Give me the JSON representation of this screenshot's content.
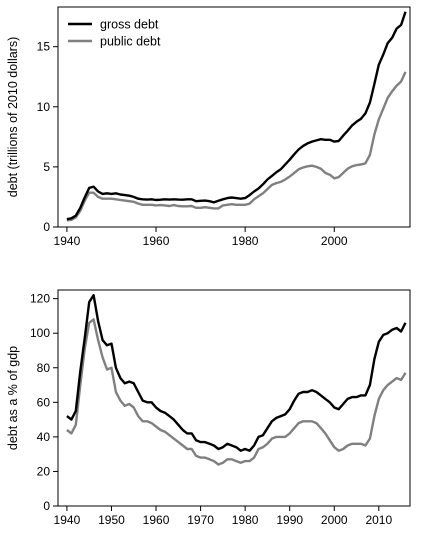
{
  "chart_data": [
    {
      "type": "line",
      "title": "",
      "xlabel": "",
      "ylabel": "debt (trillions of 2010 dollars)",
      "xlim": [
        1938,
        2017
      ],
      "ylim": [
        0,
        18.3
      ],
      "xticks": [
        1940,
        1960,
        1980,
        2000
      ],
      "yticks": [
        0,
        5,
        10,
        15
      ],
      "grid": false,
      "legend_position": "top-left",
      "series": [
        {
          "name": "gross debt",
          "color": "#000000",
          "x": [
            1940,
            1941,
            1942,
            1943,
            1944,
            1945,
            1946,
            1947,
            1948,
            1949,
            1950,
            1951,
            1952,
            1953,
            1954,
            1955,
            1956,
            1957,
            1958,
            1959,
            1960,
            1961,
            1962,
            1963,
            1964,
            1965,
            1966,
            1967,
            1968,
            1969,
            1970,
            1971,
            1972,
            1973,
            1974,
            1975,
            1976,
            1977,
            1978,
            1979,
            1980,
            1981,
            1982,
            1983,
            1984,
            1985,
            1986,
            1987,
            1988,
            1989,
            1990,
            1991,
            1992,
            1993,
            1994,
            1995,
            1996,
            1997,
            1998,
            1999,
            2000,
            2001,
            2002,
            2003,
            2004,
            2005,
            2006,
            2007,
            2008,
            2009,
            2010,
            2011,
            2012,
            2013,
            2014,
            2015,
            2016
          ],
          "values": [
            0.65,
            0.72,
            0.95,
            1.6,
            2.45,
            3.25,
            3.35,
            2.95,
            2.75,
            2.8,
            2.75,
            2.8,
            2.7,
            2.65,
            2.6,
            2.5,
            2.35,
            2.3,
            2.28,
            2.3,
            2.25,
            2.27,
            2.3,
            2.28,
            2.3,
            2.28,
            2.27,
            2.3,
            2.3,
            2.15,
            2.18,
            2.2,
            2.15,
            2.05,
            2.18,
            2.3,
            2.4,
            2.45,
            2.4,
            2.35,
            2.4,
            2.65,
            2.95,
            3.2,
            3.55,
            3.95,
            4.25,
            4.55,
            4.8,
            5.2,
            5.6,
            6.05,
            6.45,
            6.75,
            6.95,
            7.1,
            7.2,
            7.3,
            7.25,
            7.25,
            7.1,
            7.15,
            7.6,
            8.0,
            8.45,
            8.75,
            9.0,
            9.45,
            10.35,
            11.9,
            13.5,
            14.35,
            15.3,
            15.75,
            16.5,
            16.8,
            17.9
          ]
        },
        {
          "name": "public debt",
          "color": "#808080",
          "x": [
            1940,
            1941,
            1942,
            1943,
            1944,
            1945,
            1946,
            1947,
            1948,
            1949,
            1950,
            1951,
            1952,
            1953,
            1954,
            1955,
            1956,
            1957,
            1958,
            1959,
            1960,
            1961,
            1962,
            1963,
            1964,
            1965,
            1966,
            1967,
            1968,
            1969,
            1970,
            1971,
            1972,
            1973,
            1974,
            1975,
            1976,
            1977,
            1978,
            1979,
            1980,
            1981,
            1982,
            1983,
            1984,
            1985,
            1986,
            1987,
            1988,
            1989,
            1990,
            1991,
            1992,
            1993,
            1994,
            1995,
            1996,
            1997,
            1998,
            1999,
            2000,
            2001,
            2002,
            2003,
            2004,
            2005,
            2006,
            2007,
            2008,
            2009,
            2010,
            2011,
            2012,
            2013,
            2014,
            2015,
            2016
          ],
          "values": [
            0.55,
            0.6,
            0.8,
            1.35,
            2.2,
            2.85,
            2.85,
            2.5,
            2.35,
            2.35,
            2.35,
            2.3,
            2.25,
            2.2,
            2.15,
            2.1,
            1.95,
            1.85,
            1.85,
            1.85,
            1.8,
            1.82,
            1.8,
            1.75,
            1.82,
            1.75,
            1.72,
            1.72,
            1.75,
            1.6,
            1.6,
            1.65,
            1.6,
            1.55,
            1.55,
            1.8,
            1.85,
            1.9,
            1.85,
            1.85,
            1.85,
            1.95,
            2.3,
            2.55,
            2.8,
            3.15,
            3.5,
            3.65,
            3.75,
            3.95,
            4.2,
            4.5,
            4.8,
            4.95,
            5.05,
            5.1,
            5.0,
            4.85,
            4.5,
            4.35,
            4.05,
            4.15,
            4.5,
            4.85,
            5.05,
            5.15,
            5.2,
            5.3,
            6.0,
            7.7,
            8.95,
            9.85,
            10.75,
            11.3,
            11.75,
            12.1,
            12.9
          ]
        }
      ]
    },
    {
      "type": "line",
      "title": "",
      "xlabel": "",
      "ylabel": "debt as a % of gdp",
      "xlim": [
        1938,
        2017
      ],
      "ylim": [
        0,
        125
      ],
      "xticks": [
        1940,
        1950,
        1960,
        1970,
        1980,
        1990,
        2000,
        2010
      ],
      "yticks": [
        0,
        20,
        40,
        60,
        80,
        100,
        120
      ],
      "grid": false,
      "series": [
        {
          "color": "#000000",
          "x": [
            1940,
            1941,
            1942,
            1943,
            1944,
            1945,
            1946,
            1947,
            1948,
            1949,
            1950,
            1951,
            1952,
            1953,
            1954,
            1955,
            1956,
            1957,
            1958,
            1959,
            1960,
            1961,
            1962,
            1963,
            1964,
            1965,
            1966,
            1967,
            1968,
            1969,
            1970,
            1971,
            1972,
            1973,
            1974,
            1975,
            1976,
            1977,
            1978,
            1979,
            1980,
            1981,
            1982,
            1983,
            1984,
            1985,
            1986,
            1987,
            1988,
            1989,
            1990,
            1991,
            1992,
            1993,
            1994,
            1995,
            1996,
            1997,
            1998,
            1999,
            2000,
            2001,
            2002,
            2003,
            2004,
            2005,
            2006,
            2007,
            2008,
            2009,
            2010,
            2011,
            2012,
            2013,
            2014,
            2015,
            2016
          ],
          "values": [
            52,
            50,
            55,
            78,
            97,
            118,
            122,
            107,
            96,
            93,
            94,
            80,
            74,
            71,
            72,
            71,
            66,
            61,
            60,
            60,
            57,
            55,
            54,
            52,
            50,
            47,
            44,
            42,
            42,
            38,
            37,
            37,
            36,
            35,
            33,
            34,
            36,
            35,
            34,
            32,
            33,
            32,
            35,
            40,
            41,
            45,
            49,
            51,
            52,
            53,
            56,
            61,
            65,
            66,
            66,
            67,
            66,
            64,
            62,
            60,
            57,
            56,
            59,
            62,
            63,
            63,
            64,
            64,
            70,
            85,
            95,
            99,
            100,
            102,
            103,
            101,
            106
          ]
        },
        {
          "color": "#808080",
          "x": [
            1940,
            1941,
            1942,
            1943,
            1944,
            1945,
            1946,
            1947,
            1948,
            1949,
            1950,
            1951,
            1952,
            1953,
            1954,
            1955,
            1956,
            1957,
            1958,
            1959,
            1960,
            1961,
            1962,
            1963,
            1964,
            1965,
            1966,
            1967,
            1968,
            1969,
            1970,
            1971,
            1972,
            1973,
            1974,
            1975,
            1976,
            1977,
            1978,
            1979,
            1980,
            1981,
            1982,
            1983,
            1984,
            1985,
            1986,
            1987,
            1988,
            1989,
            1990,
            1991,
            1992,
            1993,
            1994,
            1995,
            1996,
            1997,
            1998,
            1999,
            2000,
            2001,
            2002,
            2003,
            2004,
            2005,
            2006,
            2007,
            2008,
            2009,
            2010,
            2011,
            2012,
            2013,
            2014,
            2015,
            2016
          ],
          "values": [
            44,
            42,
            47,
            70,
            91,
            106,
            108,
            96,
            86,
            79,
            80,
            66,
            61,
            58,
            59,
            57,
            52,
            49,
            49,
            48,
            46,
            44,
            43,
            41,
            39,
            37,
            35,
            33,
            33,
            29,
            28,
            28,
            27,
            26,
            24,
            25,
            27,
            27,
            26,
            25,
            26,
            26,
            28,
            33,
            34,
            36,
            39,
            40,
            40,
            40,
            42,
            45,
            48,
            49,
            49,
            49,
            48,
            45,
            42,
            38,
            34,
            32,
            33,
            35,
            36,
            36,
            36,
            35,
            39,
            52,
            62,
            67,
            70,
            72,
            74,
            73,
            77
          ]
        }
      ]
    }
  ]
}
